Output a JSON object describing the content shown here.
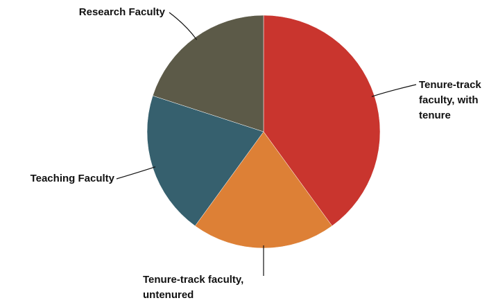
{
  "chart_data": {
    "type": "pie",
    "categories": [
      "Tenure-track faculty, with tenure",
      "Tenure-track faculty, untenured",
      "Teaching Faculty",
      "Research Faculty"
    ],
    "values": [
      40,
      20,
      20,
      20
    ],
    "colors": [
      "#c9352e",
      "#dd8036",
      "#36606e",
      "#5c5a48"
    ]
  }
}
